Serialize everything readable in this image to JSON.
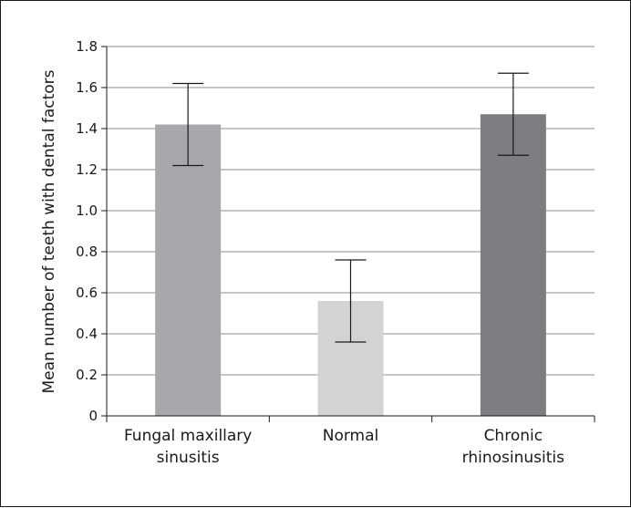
{
  "chart_data": {
    "type": "bar",
    "title": "",
    "xlabel": "",
    "ylabel": "Mean number of teeth with dental factors",
    "ylim": [
      0,
      1.8
    ],
    "yticks": [
      0,
      0.2,
      0.4,
      0.6,
      0.8,
      1.0,
      1.2,
      1.4,
      1.6,
      1.8
    ],
    "ytick_labels": [
      "0",
      "0.2",
      "0.4",
      "0.6",
      "0.8",
      "1.0",
      "1.2",
      "1.4",
      "1.6",
      "1.8"
    ],
    "grid": true,
    "categories": [
      [
        "Fungal maxillary",
        "sinusitis"
      ],
      [
        "Normal"
      ],
      [
        "Chronic",
        "rhinosinusitis"
      ]
    ],
    "values": [
      1.42,
      0.56,
      1.47
    ],
    "error_bars": [
      {
        "low": 1.22,
        "high": 1.62
      },
      {
        "low": 0.36,
        "high": 0.76
      },
      {
        "low": 1.27,
        "high": 1.67
      }
    ],
    "colors": [
      "#a7a8ac",
      "#d2d3d5",
      "#7d7e82"
    ]
  }
}
